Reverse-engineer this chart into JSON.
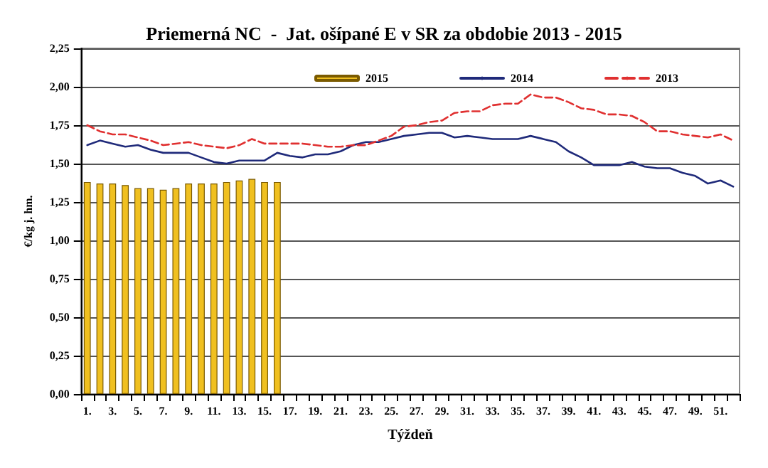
{
  "chart_data": {
    "type": "line",
    "title": "Priemerná NC  -  Jat. ošípané E v SR za obdobie 2013 - 2015",
    "xlabel": "Týždeň",
    "ylabel": "€/kg j. hm.",
    "categories": [
      "1.",
      null,
      "3.",
      null,
      "5.",
      null,
      "7.",
      null,
      "9.",
      null,
      "11.",
      null,
      "13.",
      null,
      "15.",
      null,
      "17.",
      null,
      "19.",
      null,
      "21.",
      null,
      "23.",
      null,
      "25.",
      null,
      "27.",
      null,
      "29.",
      null,
      "31.",
      null,
      "33.",
      null,
      "35.",
      null,
      "37.",
      null,
      "39.",
      null,
      "41.",
      null,
      "43.",
      null,
      "45.",
      null,
      "47.",
      null,
      "49.",
      null,
      "51.",
      null
    ],
    "series": [
      {
        "name": "2015",
        "type": "bar",
        "color": "#f0c020",
        "values": [
          1.38,
          1.37,
          1.37,
          1.36,
          1.34,
          1.34,
          1.33,
          1.34,
          1.37,
          1.37,
          1.37,
          1.38,
          1.39,
          1.4,
          1.38,
          1.38,
          null,
          null,
          null,
          null,
          null,
          null,
          null,
          null,
          null,
          null,
          null,
          null,
          null,
          null,
          null,
          null,
          null,
          null,
          null,
          null,
          null,
          null,
          null,
          null,
          null,
          null,
          null,
          null,
          null,
          null,
          null,
          null,
          null,
          null,
          null,
          null
        ]
      },
      {
        "name": "2014",
        "color": "#1f2a7a",
        "line_style": "solid",
        "values": [
          1.62,
          1.65,
          1.63,
          1.61,
          1.62,
          1.59,
          1.57,
          1.57,
          1.57,
          1.54,
          1.51,
          1.5,
          1.52,
          1.52,
          1.52,
          1.57,
          1.55,
          1.54,
          1.56,
          1.56,
          1.58,
          1.62,
          1.64,
          1.64,
          1.66,
          1.68,
          1.69,
          1.7,
          1.7,
          1.67,
          1.68,
          1.67,
          1.66,
          1.66,
          1.66,
          1.68,
          1.66,
          1.64,
          1.58,
          1.54,
          1.49,
          1.49,
          1.49,
          1.51,
          1.48,
          1.47,
          1.47,
          1.44,
          1.42,
          1.37,
          1.39,
          1.35
        ]
      },
      {
        "name": "2013",
        "color": "#e03030",
        "line_style": "dashed",
        "values": [
          1.75,
          1.71,
          1.69,
          1.69,
          1.67,
          1.65,
          1.62,
          1.63,
          1.64,
          1.62,
          1.61,
          1.6,
          1.62,
          1.66,
          1.63,
          1.63,
          1.63,
          1.63,
          1.62,
          1.61,
          1.61,
          1.62,
          1.62,
          1.65,
          1.68,
          1.74,
          1.75,
          1.77,
          1.78,
          1.83,
          1.84,
          1.84,
          1.88,
          1.89,
          1.89,
          1.95,
          1.93,
          1.93,
          1.9,
          1.86,
          1.85,
          1.82,
          1.82,
          1.81,
          1.77,
          1.71,
          1.71,
          1.69,
          1.68,
          1.67,
          1.69,
          1.65
        ]
      }
    ],
    "ylim": [
      0,
      2.25
    ],
    "yticks": [
      {
        "value": 0,
        "label": "0,00"
      },
      {
        "value": 0.25,
        "label": "0,25"
      },
      {
        "value": 0.5,
        "label": "0,50"
      },
      {
        "value": 0.75,
        "label": "0,75"
      },
      {
        "value": 1,
        "label": "1,00"
      },
      {
        "value": 1.25,
        "label": "1,25"
      },
      {
        "value": 1.5,
        "label": "1,50"
      },
      {
        "value": 1.75,
        "label": "1,75"
      },
      {
        "value": 2,
        "label": "2,00"
      },
      {
        "value": 2.25,
        "label": "2,25"
      }
    ],
    "grid": "y",
    "legend": "top right",
    "marker": "none"
  }
}
